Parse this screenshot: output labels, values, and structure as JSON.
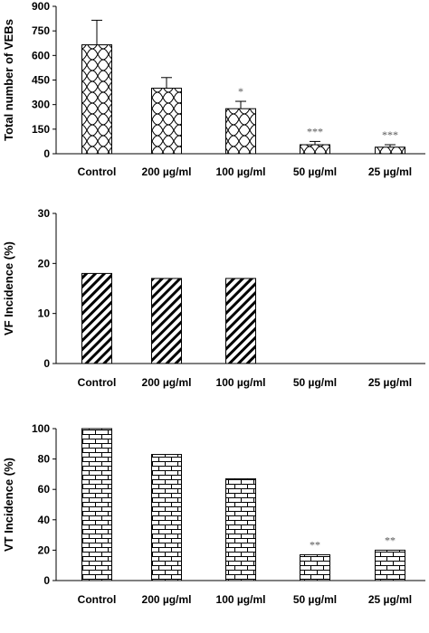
{
  "chart_data": [
    {
      "type": "bar",
      "categories": [
        "Control",
        "200 µg/ml",
        "100 µg/ml",
        "50 µg/ml",
        "25 µg/ml"
      ],
      "values": [
        665,
        400,
        275,
        55,
        40
      ],
      "errors": [
        150,
        65,
        45,
        20,
        15
      ],
      "annotations": [
        "",
        "",
        "*",
        "***",
        "***"
      ],
      "ylabel": "Total number of VEBs",
      "ylim": [
        0,
        900
      ],
      "yticks": [
        0,
        150,
        300,
        450,
        600,
        750,
        900
      ],
      "pattern": "wave-cross",
      "grid": false
    },
    {
      "type": "bar",
      "categories": [
        "Control",
        "200 µg/ml",
        "100 µg/ml",
        "50 µg/ml",
        "25 µg/ml"
      ],
      "values": [
        18,
        17,
        17,
        0,
        0
      ],
      "annotations": [
        "",
        "",
        "",
        "",
        ""
      ],
      "ylabel": "VF Incidence (%)",
      "ylim": [
        0,
        30
      ],
      "yticks": [
        0,
        10,
        20,
        30
      ],
      "pattern": "diagonal-stripes",
      "grid": false
    },
    {
      "type": "bar",
      "categories": [
        "Control",
        "200 µg/ml",
        "100 µg/ml",
        "50 µg/ml",
        "25 µg/ml"
      ],
      "values": [
        100,
        83,
        67,
        17,
        20
      ],
      "annotations": [
        "",
        "",
        "",
        "**",
        "**"
      ],
      "ylabel": "VT Incidence (%)",
      "ylim": [
        0,
        100
      ],
      "yticks": [
        0,
        20,
        40,
        60,
        80,
        100
      ],
      "pattern": "brick",
      "grid": false
    }
  ]
}
